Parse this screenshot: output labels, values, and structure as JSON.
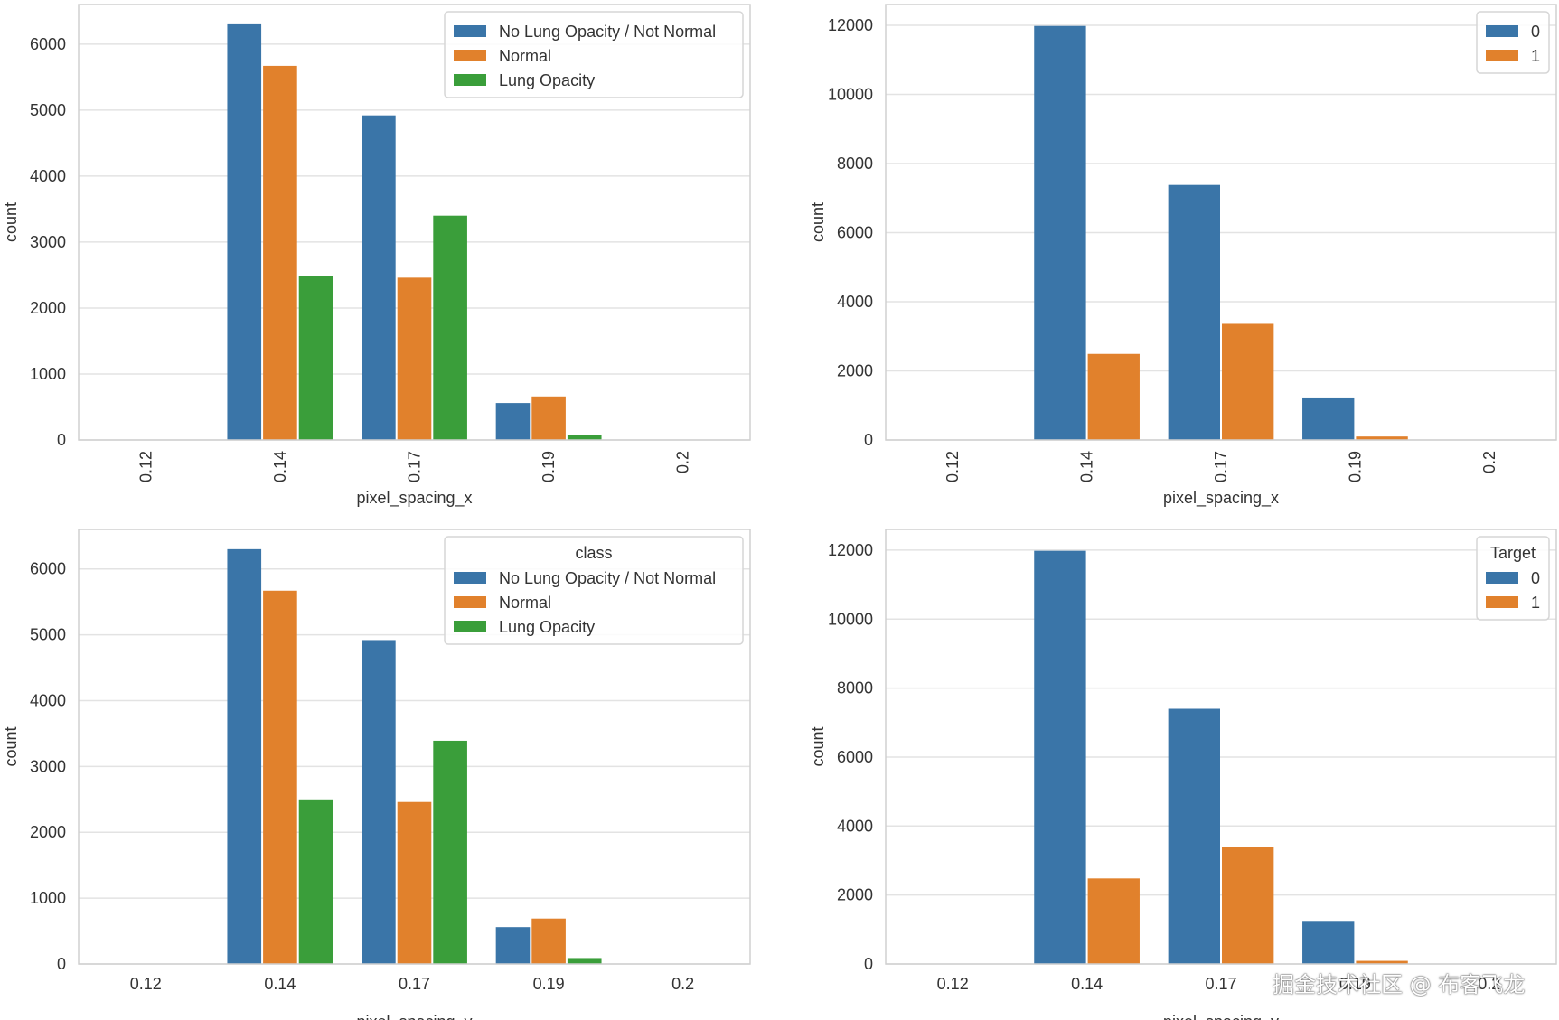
{
  "colors": {
    "blue": "#3a75a8",
    "orange": "#e1812c",
    "green": "#3a9e3a",
    "grid": "#e3e3e3",
    "spine": "#d0d0d0"
  },
  "watermark": "掘金技术社区 @ 布客飞龙",
  "chart_data": [
    {
      "type": "bar",
      "position": "top-left",
      "categories": [
        "0.12",
        "0.14",
        "0.17",
        "0.19",
        "0.2"
      ],
      "xtick_rotation": "vertical",
      "xlabel": "pixel_spacing_x",
      "ylabel": "count",
      "ylim": [
        0,
        6600
      ],
      "yticks": [
        0,
        1000,
        2000,
        3000,
        4000,
        5000,
        6000
      ],
      "legend": {
        "title": "",
        "placement": "top-right"
      },
      "series": [
        {
          "name": "No Lung Opacity / Not Normal",
          "color": "#3a75a8",
          "values": [
            0,
            6300,
            4920,
            560,
            0
          ]
        },
        {
          "name": "Normal",
          "color": "#e1812c",
          "values": [
            0,
            5670,
            2460,
            660,
            0
          ]
        },
        {
          "name": "Lung Opacity",
          "color": "#3a9e3a",
          "values": [
            0,
            2490,
            3400,
            70,
            0
          ]
        }
      ]
    },
    {
      "type": "bar",
      "position": "top-right",
      "categories": [
        "0.12",
        "0.14",
        "0.17",
        "0.19",
        "0.2"
      ],
      "xtick_rotation": "vertical",
      "xlabel": "pixel_spacing_x",
      "ylabel": "count",
      "ylim": [
        0,
        12600
      ],
      "yticks": [
        0,
        2000,
        4000,
        6000,
        8000,
        10000,
        12000
      ],
      "legend": {
        "title": "",
        "placement": "top-right"
      },
      "series": [
        {
          "name": "0",
          "color": "#3a75a8",
          "values": [
            0,
            11980,
            7380,
            1230,
            0
          ]
        },
        {
          "name": "1",
          "color": "#e1812c",
          "values": [
            0,
            2490,
            3360,
            100,
            0
          ]
        }
      ]
    },
    {
      "type": "bar",
      "position": "bottom-left",
      "categories": [
        "0.12",
        "0.14",
        "0.17",
        "0.19",
        "0.2"
      ],
      "xtick_rotation": "horizontal",
      "xlabel": "pixel_spacing_y",
      "ylabel": "count",
      "ylim": [
        0,
        6600
      ],
      "yticks": [
        0,
        1000,
        2000,
        3000,
        4000,
        5000,
        6000
      ],
      "legend": {
        "title": "class",
        "placement": "top-right"
      },
      "series": [
        {
          "name": "No Lung Opacity / Not Normal",
          "color": "#3a75a8",
          "values": [
            0,
            6300,
            4920,
            560,
            0
          ]
        },
        {
          "name": "Normal",
          "color": "#e1812c",
          "values": [
            0,
            5670,
            2460,
            690,
            0
          ]
        },
        {
          "name": "Lung Opacity",
          "color": "#3a9e3a",
          "values": [
            0,
            2500,
            3390,
            90,
            0
          ]
        }
      ]
    },
    {
      "type": "bar",
      "position": "bottom-right",
      "categories": [
        "0.12",
        "0.14",
        "0.17",
        "0.19",
        "0.2"
      ],
      "xtick_rotation": "horizontal",
      "xlabel": "pixel_spacing_y",
      "ylabel": "count",
      "ylim": [
        0,
        12600
      ],
      "yticks": [
        0,
        2000,
        4000,
        6000,
        8000,
        10000,
        12000
      ],
      "legend": {
        "title": "Target",
        "placement": "top-right"
      },
      "series": [
        {
          "name": "0",
          "color": "#3a75a8",
          "values": [
            0,
            11980,
            7400,
            1250,
            0
          ]
        },
        {
          "name": "1",
          "color": "#e1812c",
          "values": [
            0,
            2480,
            3380,
            90,
            0
          ]
        }
      ]
    }
  ]
}
